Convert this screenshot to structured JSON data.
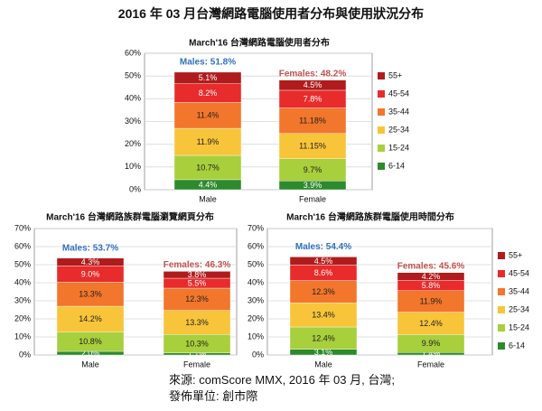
{
  "main_title": "2016 年 03 月台灣網路電腦使用者分布與使用狀況分布",
  "footer": {
    "source": "來源: comScore MMX, 2016 年 03 月, 台灣;",
    "publisher": "發佈單位: 創市際"
  },
  "colors": {
    "55+": "#b01c1c",
    "45-54": "#e82b2b",
    "35-44": "#f2762b",
    "25-34": "#f8c43a",
    "15-24": "#a8cf3c",
    "6-14": "#2d8a2d",
    "male_label": "#2f6fbf",
    "female_label": "#c0504d",
    "grid": "#d8d8d8",
    "axis": "#888888"
  },
  "chart_data": [
    {
      "type": "bar",
      "stacked": true,
      "title": "March'16 台灣網路電腦使用者分布",
      "categories": [
        "Male",
        "Female"
      ],
      "totals": [
        "Males: 51.8%",
        "Females: 48.2%"
      ],
      "ylim": [
        0,
        60
      ],
      "yticks": [
        0,
        10,
        20,
        30,
        40,
        50,
        60
      ],
      "grid": true,
      "legend_position": "right",
      "series": [
        {
          "name": "6-14",
          "values": [
            4.4,
            3.9
          ],
          "labels": [
            "4.4%",
            "3.9%"
          ]
        },
        {
          "name": "15-24",
          "values": [
            10.7,
            9.7
          ],
          "labels": [
            "10.7%",
            "9.7%"
          ]
        },
        {
          "name": "25-34",
          "values": [
            11.9,
            11.15
          ],
          "labels": [
            "11.9%",
            "11.15%"
          ]
        },
        {
          "name": "35-44",
          "values": [
            11.4,
            11.18
          ],
          "labels": [
            "11.4%",
            "11.18%"
          ]
        },
        {
          "name": "45-54",
          "values": [
            8.2,
            7.8
          ],
          "labels": [
            "8.2%",
            "7.8%"
          ]
        },
        {
          "name": "55+",
          "values": [
            5.1,
            4.5
          ],
          "labels": [
            "5.1%",
            "4.5%"
          ]
        }
      ]
    },
    {
      "type": "bar",
      "stacked": true,
      "title": "March'16 台灣網路族群電腦瀏覽網頁分布",
      "categories": [
        "Male",
        "Female"
      ],
      "totals": [
        "Males: 53.7%",
        "Females: 46.3%"
      ],
      "ylim": [
        0,
        70
      ],
      "yticks": [
        0,
        10,
        20,
        30,
        40,
        50,
        60,
        70
      ],
      "grid": true,
      "legend_position": "none",
      "series": [
        {
          "name": "6-14",
          "values": [
            2.0,
            1.1
          ],
          "labels": [
            "2.0%",
            "1.1%"
          ]
        },
        {
          "name": "15-24",
          "values": [
            10.8,
            10.3
          ],
          "labels": [
            "10.8%",
            "10.3%"
          ]
        },
        {
          "name": "25-34",
          "values": [
            14.2,
            13.3
          ],
          "labels": [
            "14.2%",
            "13.3%"
          ]
        },
        {
          "name": "35-44",
          "values": [
            13.3,
            12.3
          ],
          "labels": [
            "13.3%",
            "12.3%"
          ]
        },
        {
          "name": "45-54",
          "values": [
            9.0,
            5.5
          ],
          "labels": [
            "9.0%",
            "5.5%"
          ]
        },
        {
          "name": "55+",
          "values": [
            4.3,
            3.8
          ],
          "labels": [
            "4.3%",
            "3.8%"
          ]
        }
      ]
    },
    {
      "type": "bar",
      "stacked": true,
      "title": "March'16 台灣網路族群電腦使用時間分布",
      "categories": [
        "Male",
        "Female"
      ],
      "totals": [
        "Males: 54.4%",
        "Females: 45.6%"
      ],
      "ylim": [
        0,
        70
      ],
      "yticks": [
        0,
        10,
        20,
        30,
        40,
        50,
        60,
        70
      ],
      "grid": true,
      "legend_position": "right",
      "series": [
        {
          "name": "6-14",
          "values": [
            3.1,
            1.4
          ],
          "labels": [
            "3.1%",
            "1.4%"
          ]
        },
        {
          "name": "15-24",
          "values": [
            12.4,
            9.9
          ],
          "labels": [
            "12.4%",
            "9.9%"
          ]
        },
        {
          "name": "25-34",
          "values": [
            13.4,
            12.4
          ],
          "labels": [
            "13.4%",
            "12.4%"
          ]
        },
        {
          "name": "35-44",
          "values": [
            12.3,
            11.9
          ],
          "labels": [
            "12.3%",
            "11.9%"
          ]
        },
        {
          "name": "45-54",
          "values": [
            8.6,
            5.8
          ],
          "labels": [
            "8.6%",
            "5.8%"
          ]
        },
        {
          "name": "55+",
          "values": [
            4.5,
            4.2
          ],
          "labels": [
            "4.5%",
            "4.2%"
          ]
        }
      ]
    }
  ]
}
